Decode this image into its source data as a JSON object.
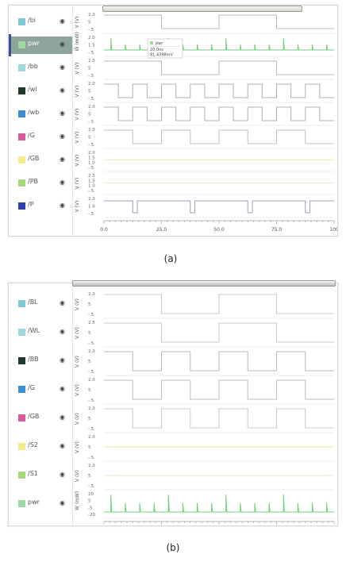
{
  "panel_a": {
    "caption": "(a)",
    "signals": [
      {
        "name": "/bi",
        "color": "#7ec8d8",
        "unit": "V (V)",
        "ticks": [
          "2.0",
          "5",
          "-.5"
        ],
        "kind": "square",
        "period": 50,
        "stroke": "#b8b8b8"
      },
      {
        "name": "pwr",
        "color": "#9fd9a2",
        "unit": "W (mW)",
        "ticks": [
          "2.0",
          "1.5",
          "-.5"
        ],
        "kind": "spikes",
        "stroke": "#6fcf7a",
        "selected": true
      },
      {
        "name": "/bb",
        "color": "#9fd6dd",
        "unit": "V (V)",
        "ticks": [
          "2.0",
          "5",
          "-.5"
        ],
        "kind": "square",
        "period": 50,
        "phase": 25,
        "stroke": "#b8b8b8"
      },
      {
        "name": "/wl",
        "color": "#1f3a2a",
        "unit": "V (V)",
        "ticks": [
          "2.0",
          "5",
          "-.5"
        ],
        "kind": "square",
        "period": 12.5,
        "stroke": "#b0b0b0"
      },
      {
        "name": "/wb",
        "color": "#3b8fd0",
        "unit": "V (V)",
        "ticks": [
          "2.0",
          "5",
          "-.5"
        ],
        "kind": "square",
        "period": 12.5,
        "stroke": "#b0b0b0"
      },
      {
        "name": "/G",
        "color": "#d85a9a",
        "unit": "V (V)",
        "ticks": [
          "2.0",
          "5",
          "-.5"
        ],
        "kind": "square",
        "period": 25,
        "stroke": "#c0c0c0"
      },
      {
        "name": "/GB",
        "color": "#f3ec8a",
        "unit": "V (V)",
        "ticks": [
          "2.0",
          "1.5",
          "1.0",
          "-.5"
        ],
        "kind": "flat",
        "stroke": "#efe9a8"
      },
      {
        "name": "/PB",
        "color": "#a8d87a",
        "unit": "V (V)",
        "ticks": [
          "2.5",
          "1.5",
          "1.0",
          "-.5"
        ],
        "kind": "flat",
        "stroke": "#d9eccc"
      },
      {
        "name": "/P",
        "color": "#2c44a8",
        "unit": "V (V)",
        "ticks": [
          "2.0",
          "1.0",
          "-.5"
        ],
        "kind": "dips",
        "stroke": "#9aa0b8"
      }
    ],
    "tooltip": {
      "label": "pwr",
      "time": "20.0ns",
      "value": "81.4398mV"
    },
    "xticks": [
      "0.0",
      "25.0",
      "50.0",
      "75.0",
      "100"
    ]
  },
  "panel_b": {
    "caption": "(b)",
    "signals": [
      {
        "name": "/BL",
        "color": "#7ec8d8",
        "unit": "V (V)",
        "ticks": [
          "2.0",
          "5",
          "-.5"
        ],
        "kind": "square",
        "period": 50,
        "stroke": "#c8c8c8"
      },
      {
        "name": "/WL",
        "color": "#9fd6dd",
        "unit": "V (V)",
        "ticks": [
          "2.5",
          "5",
          "-.5"
        ],
        "kind": "square",
        "period": 50,
        "phase": 25,
        "stroke": "#c8c8c8"
      },
      {
        "name": "/BB",
        "color": "#1f3a2a",
        "unit": "V (V)",
        "ticks": [
          "2.0",
          "5",
          "-.5"
        ],
        "kind": "square",
        "period": 25,
        "stroke": "#b8b8b8"
      },
      {
        "name": "/G",
        "color": "#3b8fd0",
        "unit": "V (V)",
        "ticks": [
          "2.0",
          "5",
          "-.5"
        ],
        "kind": "square",
        "period": 25,
        "stroke": "#bcbcbc"
      },
      {
        "name": "/GB",
        "color": "#d85a9a",
        "unit": "V (V)",
        "ticks": [
          "2.0",
          "5",
          "-.5"
        ],
        "kind": "square",
        "period": 25,
        "phase": 12.5,
        "stroke": "#c8c8c8"
      },
      {
        "name": "/S2",
        "color": "#f3ec8a",
        "unit": "V (V)",
        "ticks": [
          "2.0",
          "5",
          "-.5"
        ],
        "kind": "flat",
        "stroke": "#efe9a8"
      },
      {
        "name": "/S1",
        "color": "#a8d87a",
        "unit": "V (V)",
        "ticks": [
          "2.0",
          "5",
          "-.5"
        ],
        "kind": "flat",
        "stroke": "#d9eccc"
      },
      {
        "name": "pwr",
        "color": "#9fd9a2",
        "unit": "W (mW)",
        "ticks": [
          "20",
          "5",
          "-5",
          "-20"
        ],
        "kind": "spikes",
        "stroke": "#6fcf7a"
      }
    ]
  }
}
